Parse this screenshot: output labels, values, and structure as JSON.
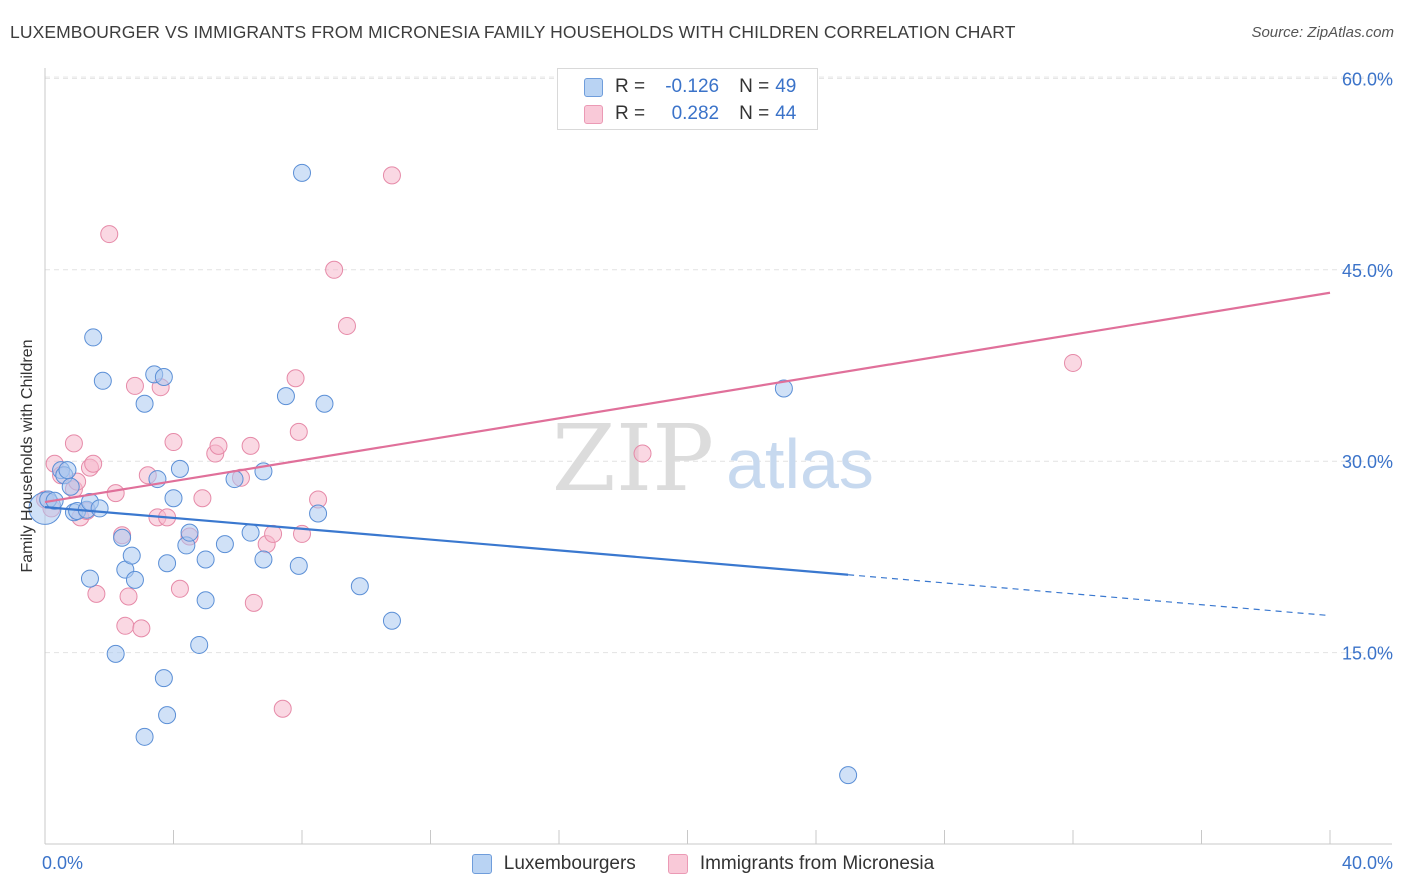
{
  "header": {
    "title": "LUXEMBOURGER VS IMMIGRANTS FROM MICRONESIA FAMILY HOUSEHOLDS WITH CHILDREN CORRELATION CHART",
    "source": "Source: ZipAtlas.com"
  },
  "watermark": {
    "zip": "ZIP",
    "atlas": "atlas"
  },
  "legend_top": {
    "rows": [
      {
        "r_label": "R =",
        "r_value": "-0.126",
        "n_label": "N =",
        "n_value": "49"
      },
      {
        "r_label": "R =",
        "r_value": "0.282",
        "n_label": "N =",
        "n_value": "44"
      }
    ]
  },
  "colors": {
    "blue_fill": "#a9c8f0",
    "blue_stroke": "#5b8fd6",
    "blue_line": "#3a78cf",
    "pink_fill": "#f6b8cc",
    "pink_stroke": "#e68aa8",
    "pink_line": "#e0709a",
    "axis_text": "#3b73c9"
  },
  "chart_data": {
    "type": "scatter",
    "title": "LUXEMBOURGER VS IMMIGRANTS FROM MICRONESIA FAMILY HOUSEHOLDS WITH CHILDREN CORRELATION CHART",
    "xlabel": "",
    "ylabel": "Family Households with Children",
    "xlim": [
      0,
      40
    ],
    "ylim": [
      0,
      62
    ],
    "x_tick_labels": [
      "0.0%",
      "40.0%"
    ],
    "y_ticks": [
      15,
      30,
      45,
      60
    ],
    "y_tick_labels": [
      "15.0%",
      "30.0%",
      "45.0%",
      "60.0%"
    ],
    "grid": true,
    "legend_position": "bottom",
    "series": [
      {
        "name": "Luxembourgers",
        "color": "#a9c8f0",
        "trend": {
          "x0": 0,
          "y0": 26.4,
          "x1": 25,
          "y1": 21.1,
          "dashed_to_x": 40,
          "dashed_to_y": 17.9
        },
        "points": [
          [
            0.0,
            26.3
          ],
          [
            0.1,
            27.0
          ],
          [
            0.3,
            26.9
          ],
          [
            0.5,
            29.3
          ],
          [
            0.6,
            28.9
          ],
          [
            0.8,
            28.0
          ],
          [
            0.9,
            26.0
          ],
          [
            1.0,
            26.1
          ],
          [
            0.7,
            29.3
          ],
          [
            1.3,
            26.2
          ],
          [
            1.4,
            26.8
          ],
          [
            1.5,
            39.7
          ],
          [
            1.8,
            36.3
          ],
          [
            1.7,
            26.3
          ],
          [
            2.4,
            24.0
          ],
          [
            2.5,
            21.5
          ],
          [
            2.7,
            22.6
          ],
          [
            2.8,
            20.7
          ],
          [
            3.1,
            34.5
          ],
          [
            3.4,
            36.8
          ],
          [
            3.5,
            28.6
          ],
          [
            3.8,
            22.0
          ],
          [
            4.0,
            27.1
          ],
          [
            4.2,
            29.4
          ],
          [
            4.4,
            23.4
          ],
          [
            4.5,
            24.4
          ],
          [
            4.8,
            15.6
          ],
          [
            5.0,
            22.3
          ],
          [
            5.0,
            19.1
          ],
          [
            5.6,
            23.5
          ],
          [
            5.9,
            28.6
          ],
          [
            6.4,
            24.4
          ],
          [
            6.8,
            29.2
          ],
          [
            6.8,
            22.3
          ],
          [
            7.5,
            35.1
          ],
          [
            7.9,
            21.8
          ],
          [
            8.0,
            52.6
          ],
          [
            8.5,
            25.9
          ],
          [
            8.7,
            34.5
          ],
          [
            9.8,
            20.2
          ],
          [
            10.8,
            17.5
          ],
          [
            3.7,
            13.0
          ],
          [
            3.8,
            10.1
          ],
          [
            3.1,
            8.4
          ],
          [
            2.2,
            14.9
          ],
          [
            1.4,
            20.8
          ],
          [
            3.7,
            36.6
          ],
          [
            23.0,
            35.7
          ],
          [
            25.0,
            5.4
          ]
        ]
      },
      {
        "name": "Immigrants from Micronesia",
        "color": "#f6b8cc",
        "trend": {
          "x0": 0,
          "y0": 26.8,
          "x1": 40,
          "y1": 43.2
        },
        "points": [
          [
            0.0,
            27.0
          ],
          [
            0.2,
            26.3
          ],
          [
            0.3,
            29.8
          ],
          [
            0.5,
            28.9
          ],
          [
            0.9,
            27.8
          ],
          [
            0.9,
            31.4
          ],
          [
            1.1,
            25.6
          ],
          [
            1.3,
            26.1
          ],
          [
            1.4,
            29.5
          ],
          [
            1.5,
            29.8
          ],
          [
            1.6,
            19.6
          ],
          [
            2.0,
            47.8
          ],
          [
            2.2,
            27.5
          ],
          [
            2.4,
            24.2
          ],
          [
            2.5,
            17.1
          ],
          [
            2.6,
            19.4
          ],
          [
            2.8,
            35.9
          ],
          [
            3.0,
            16.9
          ],
          [
            3.2,
            28.9
          ],
          [
            3.5,
            25.6
          ],
          [
            3.6,
            35.8
          ],
          [
            3.8,
            25.6
          ],
          [
            4.0,
            31.5
          ],
          [
            4.2,
            20.0
          ],
          [
            4.5,
            24.1
          ],
          [
            4.9,
            27.1
          ],
          [
            5.3,
            30.6
          ],
          [
            5.4,
            31.2
          ],
          [
            6.1,
            28.7
          ],
          [
            6.4,
            31.2
          ],
          [
            6.5,
            18.9
          ],
          [
            6.9,
            23.5
          ],
          [
            7.1,
            24.3
          ],
          [
            7.4,
            10.6
          ],
          [
            7.8,
            36.5
          ],
          [
            7.9,
            32.3
          ],
          [
            8.0,
            24.3
          ],
          [
            8.5,
            27.0
          ],
          [
            9.0,
            45.0
          ],
          [
            9.4,
            40.6
          ],
          [
            10.8,
            52.4
          ],
          [
            18.6,
            30.6
          ],
          [
            32.0,
            37.7
          ],
          [
            1.0,
            28.4
          ]
        ]
      }
    ]
  },
  "legend_bottom": {
    "items": [
      {
        "label": "Luxembourgers"
      },
      {
        "label": "Immigrants from Micronesia"
      }
    ]
  }
}
